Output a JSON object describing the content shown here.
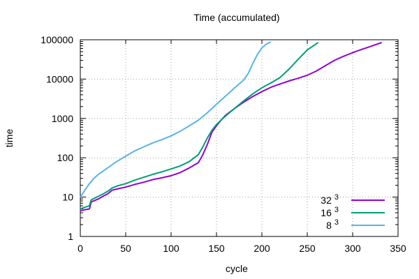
{
  "chart_data": {
    "type": "line",
    "title": "Time (accumulated)",
    "xlabel": "cycle",
    "ylabel": "time",
    "xlim": [
      0,
      350
    ],
    "ylim": [
      1,
      100000
    ],
    "yscale": "log",
    "grid": true,
    "legend_position": "bottom-right",
    "x_ticks": [
      "0",
      "50",
      "100",
      "150",
      "200",
      "250",
      "300",
      "350"
    ],
    "y_ticks": [
      "1",
      "10",
      "100",
      "1000",
      "10000",
      "100000"
    ],
    "series": [
      {
        "name": "32",
        "superscript": "3",
        "color": "#9400d3",
        "x": [
          0,
          5,
          10,
          12,
          20,
          25,
          30,
          35,
          40,
          50,
          60,
          70,
          80,
          90,
          100,
          110,
          120,
          130,
          135,
          140,
          145,
          150,
          155,
          160,
          170,
          180,
          190,
          200,
          210,
          220,
          230,
          240,
          250,
          260,
          270,
          280,
          290,
          300,
          310,
          320,
          332
        ],
        "y": [
          4.5,
          4.8,
          5,
          7.5,
          9,
          10.5,
          12,
          15,
          16,
          18,
          21,
          24,
          28,
          31,
          35,
          42,
          55,
          75,
          120,
          220,
          450,
          650,
          900,
          1200,
          1800,
          2600,
          3600,
          4800,
          6200,
          7500,
          9000,
          10500,
          12500,
          16000,
          22000,
          30000,
          38000,
          47000,
          57000,
          68000,
          85000
        ]
      },
      {
        "name": "16",
        "superscript": "3",
        "color": "#009e73",
        "x": [
          0,
          5,
          10,
          12,
          20,
          25,
          30,
          35,
          40,
          50,
          60,
          70,
          80,
          90,
          100,
          110,
          120,
          130,
          135,
          140,
          145,
          150,
          155,
          160,
          170,
          180,
          190,
          200,
          210,
          220,
          230,
          240,
          250,
          262
        ],
        "y": [
          5,
          5.5,
          6,
          8.5,
          10.5,
          12,
          14,
          17,
          19,
          22,
          27,
          32,
          38,
          44,
          52,
          62,
          80,
          120,
          190,
          320,
          500,
          700,
          900,
          1150,
          1800,
          2800,
          4200,
          6000,
          8000,
          11000,
          18000,
          32000,
          55000,
          85000
        ]
      },
      {
        "name": "8",
        "superscript": "3",
        "color": "#56b4e9",
        "x": [
          0,
          5,
          10,
          15,
          20,
          30,
          40,
          50,
          60,
          70,
          80,
          90,
          100,
          110,
          120,
          130,
          140,
          150,
          160,
          170,
          180,
          185,
          190,
          195,
          200,
          205,
          210
        ],
        "y": [
          10,
          15,
          22,
          30,
          38,
          55,
          80,
          110,
          150,
          190,
          240,
          290,
          360,
          470,
          650,
          900,
          1400,
          2300,
          3700,
          6000,
          9500,
          14000,
          25000,
          42000,
          62000,
          78000,
          88000
        ]
      }
    ]
  }
}
